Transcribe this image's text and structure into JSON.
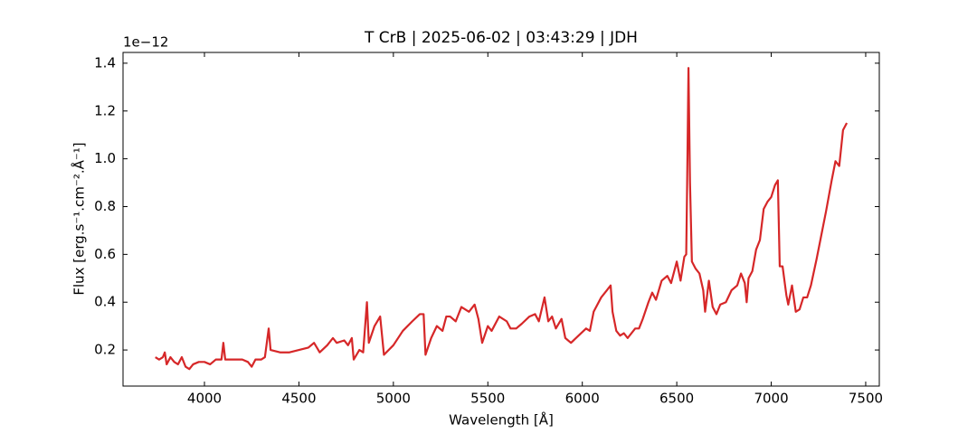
{
  "chart_data": {
    "type": "line",
    "title": "T CrB | 2025-06-02 | 03:43:29 | JDH",
    "x_label": "Wavelength [Å]",
    "y_label": "Flux [erg.s⁻¹.cm⁻².Å⁻¹]",
    "y_offset_label": "1e−12",
    "color": "#d62728",
    "x": [
      3740,
      3760,
      3780,
      3790,
      3800,
      3820,
      3840,
      3860,
      3880,
      3900,
      3920,
      3940,
      3970,
      4000,
      4030,
      4060,
      4090,
      4100,
      4110,
      4150,
      4200,
      4230,
      4250,
      4270,
      4300,
      4320,
      4340,
      4350,
      4400,
      4450,
      4500,
      4550,
      4580,
      4610,
      4650,
      4680,
      4700,
      4740,
      4760,
      4780,
      4790,
      4820,
      4840,
      4860,
      4870,
      4900,
      4930,
      4950,
      5000,
      5050,
      5100,
      5140,
      5160,
      5170,
      5200,
      5230,
      5260,
      5280,
      5300,
      5330,
      5360,
      5400,
      5430,
      5450,
      5470,
      5500,
      5520,
      5560,
      5600,
      5620,
      5650,
      5680,
      5720,
      5750,
      5770,
      5800,
      5820,
      5840,
      5860,
      5890,
      5910,
      5940,
      5980,
      6020,
      6040,
      6060,
      6100,
      6130,
      6150,
      6160,
      6180,
      6200,
      6220,
      6240,
      6280,
      6300,
      6320,
      6350,
      6370,
      6390,
      6420,
      6450,
      6470,
      6490,
      6500,
      6520,
      6540,
      6550,
      6555,
      6562,
      6570,
      6580,
      6600,
      6620,
      6640,
      6650,
      6670,
      6690,
      6710,
      6730,
      6760,
      6790,
      6820,
      6840,
      6860,
      6870,
      6880,
      6900,
      6920,
      6940,
      6960,
      6980,
      7000,
      7020,
      7035,
      7045,
      7060,
      7080,
      7090,
      7110,
      7130,
      7150,
      7170,
      7190,
      7210,
      7240,
      7260,
      7290,
      7320,
      7340,
      7360,
      7380,
      7400
    ],
    "values": [
      0.17,
      0.16,
      0.17,
      0.19,
      0.14,
      0.17,
      0.15,
      0.14,
      0.17,
      0.13,
      0.12,
      0.14,
      0.15,
      0.15,
      0.14,
      0.16,
      0.16,
      0.23,
      0.16,
      0.16,
      0.16,
      0.15,
      0.13,
      0.16,
      0.16,
      0.17,
      0.29,
      0.2,
      0.19,
      0.19,
      0.2,
      0.21,
      0.23,
      0.19,
      0.22,
      0.25,
      0.23,
      0.24,
      0.22,
      0.25,
      0.16,
      0.2,
      0.19,
      0.4,
      0.23,
      0.3,
      0.34,
      0.18,
      0.22,
      0.28,
      0.32,
      0.35,
      0.35,
      0.18,
      0.25,
      0.3,
      0.28,
      0.34,
      0.34,
      0.32,
      0.38,
      0.36,
      0.39,
      0.33,
      0.23,
      0.3,
      0.28,
      0.34,
      0.32,
      0.29,
      0.29,
      0.31,
      0.34,
      0.35,
      0.32,
      0.42,
      0.32,
      0.34,
      0.29,
      0.33,
      0.25,
      0.23,
      0.26,
      0.29,
      0.28,
      0.36,
      0.42,
      0.45,
      0.47,
      0.36,
      0.28,
      0.26,
      0.27,
      0.25,
      0.29,
      0.29,
      0.33,
      0.4,
      0.44,
      0.41,
      0.49,
      0.51,
      0.48,
      0.54,
      0.57,
      0.49,
      0.59,
      0.6,
      0.9,
      1.38,
      0.9,
      0.57,
      0.54,
      0.52,
      0.45,
      0.36,
      0.49,
      0.38,
      0.35,
      0.39,
      0.4,
      0.45,
      0.47,
      0.52,
      0.48,
      0.4,
      0.5,
      0.53,
      0.62,
      0.66,
      0.79,
      0.82,
      0.84,
      0.89,
      0.91,
      0.55,
      0.55,
      0.43,
      0.39,
      0.47,
      0.36,
      0.37,
      0.42,
      0.42,
      0.47,
      0.58,
      0.66,
      0.78,
      0.91,
      0.99,
      0.97,
      1.12,
      1.15
    ],
    "xlim": [
      3569,
      7572
    ],
    "xticks": [
      4000,
      4500,
      5000,
      5500,
      6000,
      6500,
      7000,
      7500
    ],
    "ylim": [
      0.049,
      1.445
    ],
    "yticks": [
      0.2,
      0.4,
      0.6,
      0.8,
      {
        "value": 1,
        "label": "1.0"
      },
      1.2,
      1.4
    ],
    "grid": false
  }
}
